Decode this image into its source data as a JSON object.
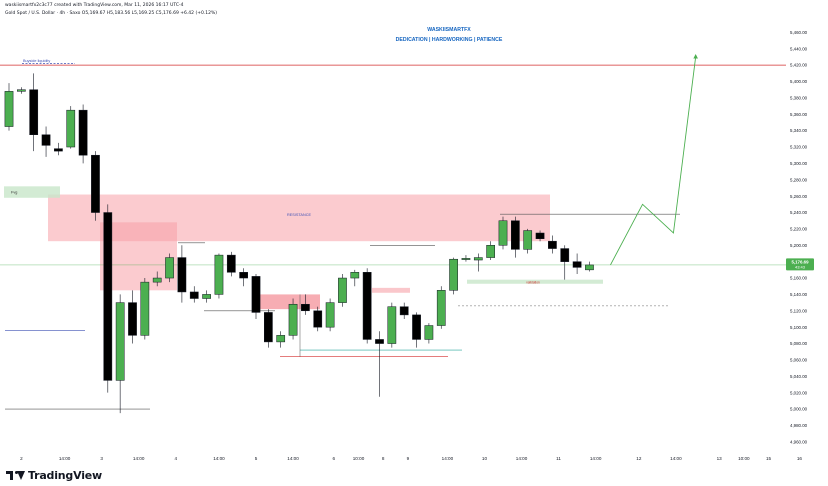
{
  "header": {
    "created_line": "waskiismartfx2c3c77 created with TradingView.com, Mar 11, 2026 16:17 UTC-4",
    "symbol_line": "Gold Spot / U.S. Dollar · 4h · Saxo",
    "ohlc_line": "O5,169.67  H5,183.56  L5,169.25  C5,176.69  +6.42 (+0.12%)"
  },
  "annotations": {
    "author": "WASKIISMARTFX",
    "motto": "DEDICATION | HARDWORKING | PATIENCE",
    "liquidity": "Buyside liquidity",
    "fvg": "Fvg",
    "resistance": "RESISTANCE",
    "validation": "validation"
  },
  "branding": {
    "logo": "tradingview-logo-icon",
    "name": "TradingView"
  },
  "colors": {
    "bull": "#4caf50",
    "bear": "#000000",
    "zone_red": "#f7a1a8",
    "zone_green": "#c8e6c9",
    "price_tag": "#4caf50",
    "liquidity_line": "#d32f2f"
  },
  "chart_data": {
    "type": "candlestick",
    "ylim": [
      4950,
      5480
    ],
    "y_ticks": [
      "5,460.00",
      "5,440.00",
      "5,420.00",
      "5,400.00",
      "5,380.00",
      "5,360.00",
      "5,340.00",
      "5,320.00",
      "5,300.00",
      "5,280.00",
      "5,260.00",
      "5,240.00",
      "5,220.00",
      "5,200.00",
      "5,180.00",
      "5,160.00",
      "5,140.00",
      "5,120.00",
      "5,100.00",
      "5,080.00",
      "5,060.00",
      "5,040.00",
      "5,020.00",
      "5,000.00",
      "4,980.00",
      "4,960.00"
    ],
    "x_ticks": [
      {
        "label": "2",
        "bar": 1
      },
      {
        "label": "14:00",
        "bar": 4.5
      },
      {
        "label": "3",
        "bar": 7.5
      },
      {
        "label": "14:00",
        "bar": 10.5
      },
      {
        "label": "4",
        "bar": 13.5
      },
      {
        "label": "14:00",
        "bar": 17
      },
      {
        "label": "5",
        "bar": 20
      },
      {
        "label": "14:00",
        "bar": 23
      },
      {
        "label": "6",
        "bar": 26.3
      },
      {
        "label": "10:00",
        "bar": 28.3
      },
      {
        "label": "8",
        "bar": 30.3
      },
      {
        "label": "9",
        "bar": 32.3
      },
      {
        "label": "14:00",
        "bar": 35.5
      },
      {
        "label": "10",
        "bar": 38.5
      },
      {
        "label": "14:00",
        "bar": 41.5
      },
      {
        "label": "11",
        "bar": 44.5
      },
      {
        "label": "14:00",
        "bar": 47.5
      },
      {
        "label": "12",
        "bar": 51
      },
      {
        "label": "14:00",
        "bar": 54
      },
      {
        "label": "13",
        "bar": 57.5
      },
      {
        "label": "10:00",
        "bar": 59.5
      },
      {
        "label": "15",
        "bar": 61.5
      },
      {
        "label": "16",
        "bar": 64
      }
    ],
    "candles": [
      {
        "o": 5345,
        "h": 5398,
        "l": 5340,
        "c": 5388
      },
      {
        "o": 5388,
        "h": 5393,
        "l": 5385,
        "c": 5390
      },
      {
        "o": 5390,
        "h": 5410,
        "l": 5315,
        "c": 5335
      },
      {
        "o": 5335,
        "h": 5345,
        "l": 5308,
        "c": 5322
      },
      {
        "o": 5318,
        "h": 5325,
        "l": 5310,
        "c": 5315
      },
      {
        "o": 5320,
        "h": 5370,
        "l": 5318,
        "c": 5365
      },
      {
        "o": 5365,
        "h": 5372,
        "l": 5300,
        "c": 5310
      },
      {
        "o": 5310,
        "h": 5315,
        "l": 5230,
        "c": 5240
      },
      {
        "o": 5240,
        "h": 5250,
        "l": 5020,
        "c": 5035
      },
      {
        "o": 5035,
        "h": 5140,
        "l": 4995,
        "c": 5130
      },
      {
        "o": 5130,
        "h": 5145,
        "l": 5080,
        "c": 5090
      },
      {
        "o": 5090,
        "h": 5160,
        "l": 5085,
        "c": 5155
      },
      {
        "o": 5155,
        "h": 5168,
        "l": 5150,
        "c": 5160
      },
      {
        "o": 5160,
        "h": 5190,
        "l": 5155,
        "c": 5185
      },
      {
        "o": 5185,
        "h": 5200,
        "l": 5130,
        "c": 5143
      },
      {
        "o": 5143,
        "h": 5150,
        "l": 5130,
        "c": 5135
      },
      {
        "o": 5135,
        "h": 5145,
        "l": 5130,
        "c": 5140
      },
      {
        "o": 5140,
        "h": 5190,
        "l": 5135,
        "c": 5188
      },
      {
        "o": 5188,
        "h": 5192,
        "l": 5162,
        "c": 5167
      },
      {
        "o": 5167,
        "h": 5172,
        "l": 5150,
        "c": 5160
      },
      {
        "o": 5162,
        "h": 5165,
        "l": 5110,
        "c": 5118
      },
      {
        "o": 5118,
        "h": 5122,
        "l": 5075,
        "c": 5082
      },
      {
        "o": 5082,
        "h": 5095,
        "l": 5075,
        "c": 5090
      },
      {
        "o": 5090,
        "h": 5135,
        "l": 5085,
        "c": 5128
      },
      {
        "o": 5128,
        "h": 5140,
        "l": 5115,
        "c": 5120
      },
      {
        "o": 5120,
        "h": 5125,
        "l": 5095,
        "c": 5100
      },
      {
        "o": 5100,
        "h": 5135,
        "l": 5095,
        "c": 5130
      },
      {
        "o": 5130,
        "h": 5165,
        "l": 5125,
        "c": 5160
      },
      {
        "o": 5160,
        "h": 5170,
        "l": 5150,
        "c": 5167
      },
      {
        "o": 5167,
        "h": 5172,
        "l": 5080,
        "c": 5085
      },
      {
        "o": 5085,
        "h": 5095,
        "l": 5015,
        "c": 5080
      },
      {
        "o": 5080,
        "h": 5130,
        "l": 5075,
        "c": 5125
      },
      {
        "o": 5125,
        "h": 5130,
        "l": 5110,
        "c": 5115
      },
      {
        "o": 5115,
        "h": 5118,
        "l": 5075,
        "c": 5085
      },
      {
        "o": 5085,
        "h": 5105,
        "l": 5080,
        "c": 5102
      },
      {
        "o": 5102,
        "h": 5150,
        "l": 5098,
        "c": 5145
      },
      {
        "o": 5145,
        "h": 5185,
        "l": 5140,
        "c": 5183
      },
      {
        "o": 5183,
        "h": 5188,
        "l": 5180,
        "c": 5184
      },
      {
        "o": 5182,
        "h": 5190,
        "l": 5168,
        "c": 5185
      },
      {
        "o": 5185,
        "h": 5205,
        "l": 5182,
        "c": 5200
      },
      {
        "o": 5200,
        "h": 5235,
        "l": 5195,
        "c": 5230
      },
      {
        "o": 5230,
        "h": 5235,
        "l": 5185,
        "c": 5195
      },
      {
        "o": 5195,
        "h": 5220,
        "l": 5190,
        "c": 5218
      },
      {
        "o": 5215,
        "h": 5218,
        "l": 5205,
        "c": 5208
      },
      {
        "o": 5205,
        "h": 5212,
        "l": 5190,
        "c": 5196
      },
      {
        "o": 5196,
        "h": 5200,
        "l": 5158,
        "c": 5180
      },
      {
        "o": 5180,
        "h": 5190,
        "l": 5165,
        "c": 5173
      },
      {
        "o": 5170,
        "h": 5180,
        "l": 5168,
        "c": 5176
      }
    ],
    "price_label": "5,176.69",
    "price_sublabel": "43:43",
    "price_value": 5176.69,
    "projection": [
      {
        "x": 48.7,
        "y": 5176
      },
      {
        "x": 51.3,
        "y": 5250
      },
      {
        "x": 53.8,
        "y": 5215
      },
      {
        "x": 55.6,
        "y": 5430
      }
    ]
  }
}
